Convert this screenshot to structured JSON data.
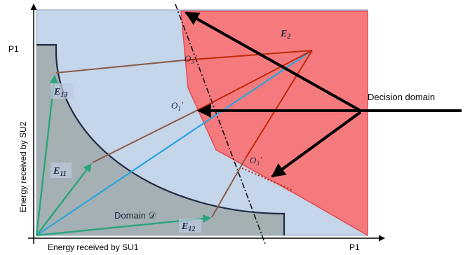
{
  "labels": {
    "y_axis": "Energy received by SU2",
    "x_axis": "Energy received by SU1",
    "p1_y": "P1",
    "p1_x": "P1",
    "decision_domain": "Decision domain",
    "domain": "Domain 𝒟",
    "e2": "E",
    "e2_sub": "2",
    "e11": "E",
    "e11_sub": "11",
    "e12": "E",
    "e12_sub": "12",
    "e13": "E",
    "e13_sub": "13",
    "o1": "O",
    "o1_sub": "1",
    "o1_prime": "’",
    "o3_top": "O",
    "o3_top_sub": "3",
    "o3_top_prime": "’",
    "o3_bottom": "O",
    "o3_bottom_sub": "3",
    "o3_bottom_prime": "’"
  },
  "colors": {
    "blue_region": "#c5d5ea",
    "red_region": "#f47a7e",
    "gray_region": "#a4b0b3",
    "green_arrow": "#2ba57c",
    "brown_line": "#8b5a49",
    "red_line": "#c0280a",
    "blue_line": "#2aa5db",
    "dark_outline": "#1f2a44",
    "black": "#000000"
  }
}
